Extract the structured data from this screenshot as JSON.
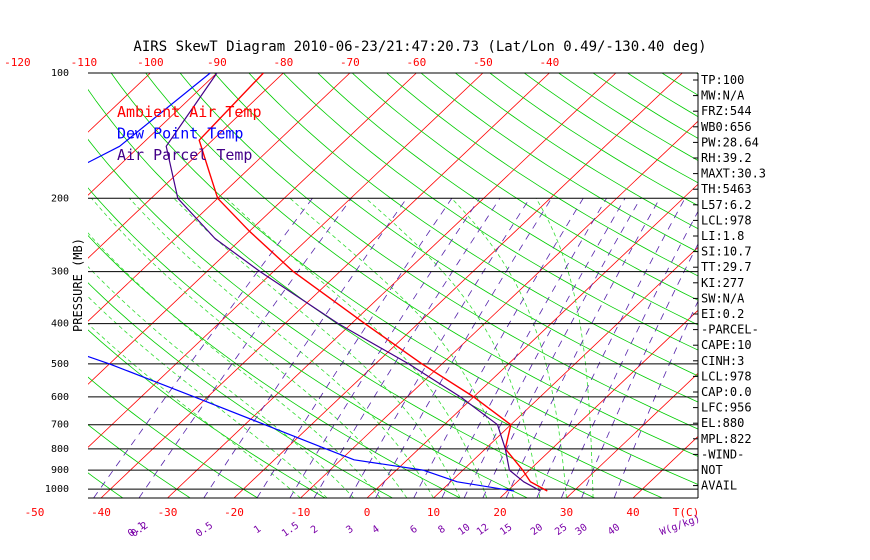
{
  "colors": {
    "frame": "#000000",
    "isotherm": "#ff0000",
    "dry_adiabat": "#00cc00",
    "moist_adiabat": "#33dd33",
    "mixing_ratio": "#5522aa",
    "ambient": "#ff0000",
    "dewpoint": "#0000ff",
    "parcel": "#440088",
    "mixing_label": "#7a00a8"
  },
  "chart_data": {
    "type": "line",
    "title": "AIRS SkewT Diagram 2010-06-23/21:47:20.73 (Lat/Lon 0.49/-130.40 deg)",
    "ylabel": "PRESSURE (MB)",
    "xlabel": "T(C)",
    "mixing_ratio_unit": "W(g/kg)",
    "ylim": [
      1050,
      100
    ],
    "log_y": true,
    "grid": true,
    "legend_position": "top-left",
    "pressure_ticks": [
      "100",
      "200",
      "300",
      "400",
      "500",
      "600",
      "700",
      "800",
      "900",
      "1000"
    ],
    "pressure_tick_values": [
      100,
      200,
      300,
      400,
      500,
      600,
      700,
      800,
      900,
      1000
    ],
    "bottom_temp_ticks": [
      "-50",
      "-40",
      "-30",
      "-20",
      "-10",
      "0",
      "10",
      "20",
      "30",
      "40"
    ],
    "bottom_temp_values": [
      -50,
      -40,
      -30,
      -20,
      -10,
      0,
      10,
      20,
      30,
      40
    ],
    "top_temp_ticks": [
      "-120",
      "-110",
      "-100",
      "-90",
      "-80",
      "-70",
      "-60",
      "-50",
      "-40"
    ],
    "top_temp_values": [
      -120,
      -110,
      -100,
      -90,
      -80,
      -70,
      -60,
      -50,
      -40
    ],
    "mixing_ratio_ticks": [
      "0.1",
      "0.2",
      "0.5",
      "1",
      "1.5",
      "2",
      "3",
      "4",
      "6",
      "8",
      "10",
      "12",
      "15",
      "20",
      "25",
      "30",
      "40"
    ],
    "mixing_ratio_values": [
      0.1,
      0.2,
      0.5,
      1,
      1.5,
      2,
      3,
      4,
      6,
      8,
      10,
      12,
      15,
      20,
      25,
      30,
      40
    ],
    "series": [
      {
        "name": "Ambient Air Temp",
        "color": "#ff0000",
        "pressure": [
          100,
          145,
          175,
          200,
          240,
          300,
          400,
          500,
          600,
          700,
          800,
          900,
          960,
          1010
        ],
        "temp": [
          -83,
          -82,
          -75,
          -70,
          -60,
          -47,
          -28,
          -13,
          0,
          10,
          13,
          19,
          22,
          26
        ]
      },
      {
        "name": "Dew Point Temp",
        "color": "#0000ff",
        "pressure": [
          100,
          150,
          200,
          250,
          300,
          400,
          500,
          600,
          700,
          800,
          850,
          900,
          960,
          1010
        ],
        "temp": [
          -91,
          -93,
          -100,
          -104,
          -99,
          -84,
          -60,
          -42,
          -27,
          -14,
          -8,
          4,
          11,
          21
        ]
      },
      {
        "name": "Air Parcel Temp",
        "color": "#440088",
        "pressure": [
          100,
          150,
          200,
          250,
          300,
          400,
          500,
          600,
          700,
          800,
          900,
          960,
          1010
        ],
        "temp": [
          -90,
          -86,
          -76,
          -64,
          -52,
          -32,
          -15,
          -2,
          8,
          13,
          17,
          21,
          25
        ]
      }
    ]
  },
  "indices": [
    "TP:100",
    "MW:N/A",
    "FRZ:544",
    "WB0:656",
    "PW:28.64",
    "RH:39.2",
    "MAXT:30.3",
    "TH:5463",
    "L57:6.2",
    "LCL:978",
    "LI:1.8",
    "SI:10.7",
    "TT:29.7",
    "KI:277",
    "SW:N/A",
    "EI:0.2",
    "-PARCEL-",
    "CAPE:10",
    "CINH:3",
    "LCL:978",
    "CAP:0.0",
    "LFC:956",
    "EL:880",
    "MPL:822",
    "-WIND-",
    "NOT",
    "AVAIL"
  ]
}
